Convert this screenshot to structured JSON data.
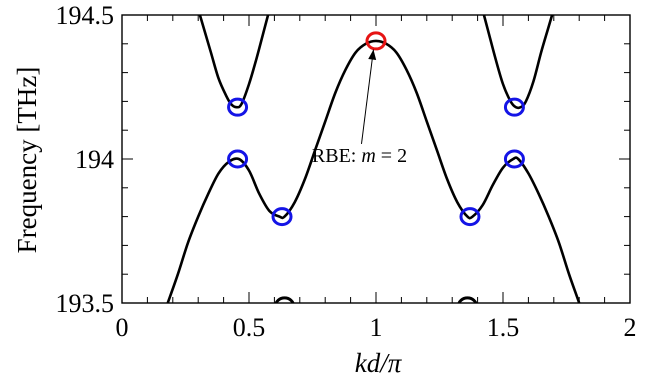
{
  "chart_data": {
    "type": "line",
    "xlabel": "kd/π",
    "ylabel": "Frequency [THz]",
    "xlim": [
      0,
      2
    ],
    "ylim": [
      193.5,
      194.5
    ],
    "xticks": [
      0,
      0.5,
      1,
      1.5,
      2
    ],
    "xtick_labels": [
      "0",
      "0.5",
      "1",
      "1.5",
      "2"
    ],
    "yticks": [
      193.5,
      194,
      194.5
    ],
    "ytick_labels": [
      "193.5",
      "194",
      "194.5"
    ],
    "grid": false,
    "series": [
      {
        "x": [
          0.18,
          0.22,
          0.26,
          0.3,
          0.34,
          0.38,
          0.42,
          0.46,
          0.5,
          0.54,
          0.58,
          0.62,
          0.64,
          0.68,
          0.72,
          0.76,
          0.8,
          0.84,
          0.88,
          0.92,
          0.96,
          1.0,
          1.04,
          1.08,
          1.12,
          1.16,
          1.2,
          1.24,
          1.28,
          1.32,
          1.36,
          1.38,
          1.42,
          1.46,
          1.5,
          1.54,
          1.56,
          1.6,
          1.64,
          1.68,
          1.72,
          1.76,
          1.8,
          1.83
        ],
        "y": [
          193.5,
          193.6,
          193.71,
          193.8,
          193.88,
          193.95,
          193.99,
          194.0,
          193.96,
          193.88,
          193.82,
          193.8,
          193.8,
          193.85,
          193.93,
          194.03,
          194.13,
          194.23,
          194.31,
          194.37,
          194.4,
          194.41,
          194.4,
          194.37,
          194.31,
          194.23,
          194.13,
          194.03,
          193.93,
          193.85,
          193.8,
          193.8,
          193.84,
          193.91,
          193.97,
          194.0,
          194.0,
          193.95,
          193.88,
          193.8,
          193.71,
          193.6,
          193.5,
          193.42
        ]
      },
      {
        "x": [
          0.29,
          0.32,
          0.35,
          0.38,
          0.41,
          0.43,
          0.45,
          0.47,
          0.5,
          0.53,
          0.56,
          0.59
        ],
        "y": [
          194.55,
          194.46,
          194.37,
          194.28,
          194.22,
          194.19,
          194.18,
          194.19,
          194.26,
          194.35,
          194.45,
          194.55
        ]
      },
      {
        "x": [
          1.41,
          1.44,
          1.47,
          1.5,
          1.53,
          1.55,
          1.57,
          1.59,
          1.62,
          1.65,
          1.68,
          1.71
        ],
        "y": [
          194.55,
          194.45,
          194.35,
          194.26,
          194.2,
          194.18,
          194.18,
          194.2,
          194.27,
          194.37,
          194.46,
          194.55
        ]
      }
    ],
    "markers": [
      {
        "x": 0.455,
        "y": 194.18,
        "color": "#1414e6"
      },
      {
        "x": 0.455,
        "y": 194.0,
        "color": "#1414e6"
      },
      {
        "x": 0.63,
        "y": 193.8,
        "color": "#1414e6"
      },
      {
        "x": 1.0,
        "y": 194.41,
        "color": "#e61414"
      },
      {
        "x": 1.37,
        "y": 193.8,
        "color": "#1414e6"
      },
      {
        "x": 1.545,
        "y": 194.0,
        "color": "#1414e6"
      },
      {
        "x": 1.545,
        "y": 194.18,
        "color": "#1414e6"
      },
      {
        "x": 0.64,
        "y": 193.49,
        "color": "#000000"
      },
      {
        "x": 1.36,
        "y": 193.49,
        "color": "#000000"
      }
    ],
    "annotation": {
      "text_prefix": "RBE: ",
      "text_var": "m",
      "text_suffix": " = 2",
      "x": 0.935,
      "y": 193.99,
      "arrow_to": {
        "x": 0.99,
        "y": 194.38
      }
    }
  }
}
